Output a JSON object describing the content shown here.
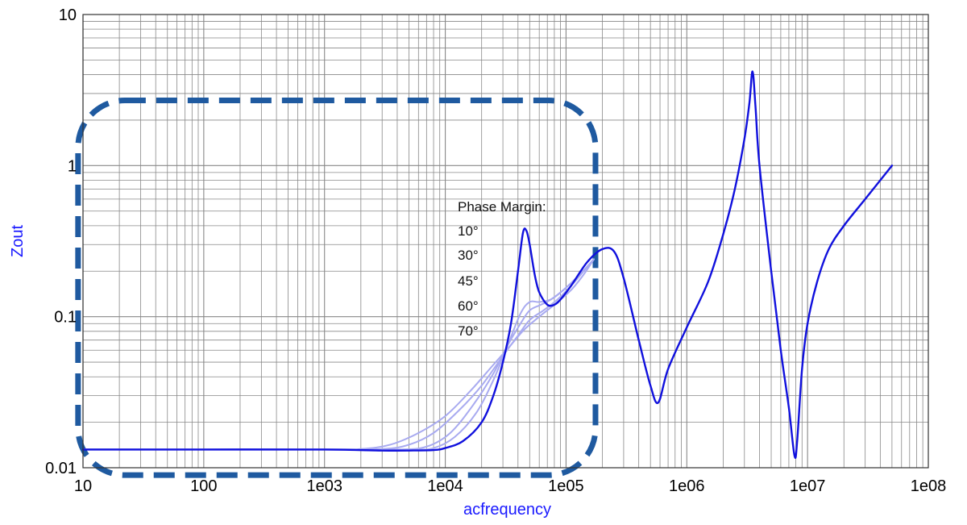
{
  "chart_data": {
    "type": "line",
    "title": "",
    "xlabel": "acfrequency",
    "ylabel": "Zout",
    "x_scale": "log",
    "y_scale": "log",
    "xlim": [
      10,
      100000000
    ],
    "ylim": [
      0.01,
      10
    ],
    "grid": true,
    "x_tick_labels": [
      "10",
      "100",
      "1e03",
      "1e04",
      "1e05",
      "1e06",
      "1e07",
      "1e08"
    ],
    "y_tick_labels": [
      "0.01",
      "0.1",
      "1",
      "10"
    ],
    "annotation": {
      "title": "Phase Margin:",
      "labels": [
        "10°",
        "30°",
        "45°",
        "60°",
        "70°"
      ]
    },
    "highlight_box": {
      "color": "#1f5aa0",
      "style": "dashed",
      "x_range": [
        12,
        170000
      ],
      "y_range": [
        0.0095,
        2.7
      ]
    },
    "colors": {
      "main": "#1010dd",
      "faded": "#a8aaf0",
      "axis_label": "#1a1aff",
      "grid": "#888888"
    },
    "series": [
      {
        "name": "10°",
        "emphasis": "main",
        "x": [
          10,
          100,
          1000,
          3000,
          5000,
          8000,
          10000,
          14000,
          20000,
          25000,
          30000,
          35000,
          40000,
          44000,
          47000,
          50000,
          55000,
          60000,
          70000,
          80000,
          90000,
          110000,
          150000,
          200000,
          250000,
          300000,
          400000,
          500000,
          580000,
          700000,
          1000000,
          1500000,
          2000000,
          2500000,
          3000000,
          3300000,
          3500000,
          3700000,
          4000000,
          5000000,
          6000000,
          7000000,
          7800000,
          8200000,
          9000000,
          10000000,
          12000000,
          15000000,
          20000000,
          30000000,
          50000000
        ],
        "y": [
          0.0132,
          0.0132,
          0.0132,
          0.013,
          0.013,
          0.0131,
          0.0135,
          0.015,
          0.02,
          0.03,
          0.05,
          0.09,
          0.2,
          0.36,
          0.37,
          0.3,
          0.19,
          0.145,
          0.12,
          0.12,
          0.13,
          0.16,
          0.23,
          0.28,
          0.27,
          0.18,
          0.07,
          0.035,
          0.027,
          0.045,
          0.085,
          0.17,
          0.35,
          0.7,
          1.5,
          2.6,
          4.2,
          2.5,
          1.0,
          0.2,
          0.06,
          0.025,
          0.012,
          0.015,
          0.045,
          0.09,
          0.17,
          0.28,
          0.4,
          0.6,
          1.0
        ]
      },
      {
        "name": "30°",
        "emphasis": "faded",
        "x": [
          10,
          1000,
          5000,
          8000,
          12000,
          18000,
          25000,
          33000,
          42000,
          50000,
          60000,
          75000,
          95000,
          130000,
          170000
        ],
        "y": [
          0.0132,
          0.0132,
          0.0132,
          0.0135,
          0.016,
          0.023,
          0.038,
          0.065,
          0.105,
          0.125,
          0.125,
          0.13,
          0.15,
          0.19,
          0.24
        ]
      },
      {
        "name": "45°",
        "emphasis": "faded",
        "x": [
          10,
          1000,
          4000,
          7000,
          11000,
          17000,
          25000,
          33000,
          42000,
          50000,
          62000,
          75000,
          95000,
          130000,
          170000
        ],
        "y": [
          0.0132,
          0.0132,
          0.0132,
          0.0138,
          0.017,
          0.026,
          0.042,
          0.065,
          0.09,
          0.11,
          0.12,
          0.13,
          0.15,
          0.19,
          0.24
        ]
      },
      {
        "name": "60°",
        "emphasis": "faded",
        "x": [
          10,
          1000,
          3000,
          5000,
          8000,
          13000,
          20000,
          30000,
          40000,
          50000,
          65000,
          85000,
          110000,
          140000,
          170000
        ],
        "y": [
          0.0132,
          0.0132,
          0.0133,
          0.0142,
          0.017,
          0.024,
          0.035,
          0.055,
          0.075,
          0.095,
          0.11,
          0.13,
          0.16,
          0.2,
          0.24
        ]
      },
      {
        "name": "70°",
        "emphasis": "faded",
        "x": [
          10,
          1000,
          2000,
          3500,
          6000,
          10000,
          16000,
          25000,
          35000,
          45000,
          60000,
          80000,
          110000,
          140000,
          170000
        ],
        "y": [
          0.0132,
          0.0132,
          0.0133,
          0.0142,
          0.017,
          0.022,
          0.032,
          0.048,
          0.065,
          0.082,
          0.1,
          0.12,
          0.15,
          0.19,
          0.24
        ]
      }
    ]
  }
}
